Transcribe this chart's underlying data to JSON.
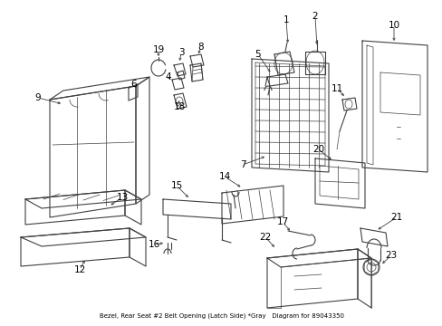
{
  "bg_color": "#ffffff",
  "line_color": "#404040",
  "label_color": "#000000",
  "caption": "Bezel, Rear Seat #2 Belt Opening (Latch Side) *Gray   Diagram for 89043350",
  "figsize": [
    4.89,
    3.6
  ],
  "dpi": 100
}
